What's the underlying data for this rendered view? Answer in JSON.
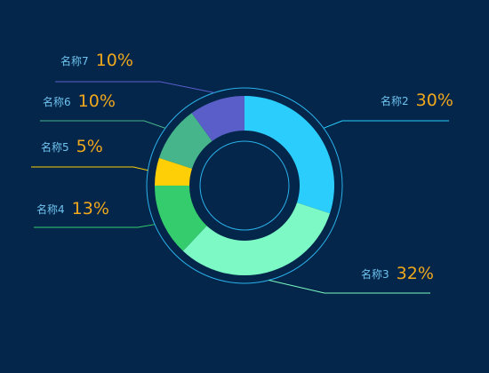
{
  "chart_data": {
    "type": "pie",
    "variant": "donut",
    "title": "",
    "legend": "none",
    "slices": [
      {
        "name": "名称2",
        "value": 30,
        "label": "30%",
        "color": "#2bcdfd"
      },
      {
        "name": "名称3",
        "value": 32,
        "label": "32%",
        "color": "#7cf9c4"
      },
      {
        "name": "名称4",
        "value": 13,
        "label": "13%",
        "color": "#35cc6d"
      },
      {
        "name": "名称5",
        "value": 5,
        "label": "5%",
        "color": "#fece06"
      },
      {
        "name": "名称6",
        "value": 10,
        "label": "10%",
        "color": "#47b58b"
      },
      {
        "name": "名称7",
        "value": 10,
        "label": "10%",
        "color": "#5a5ec9"
      }
    ]
  },
  "colors": {
    "background": "#03264a",
    "ring_outline": "#2bb1ea",
    "label_name": "#6fc3f0",
    "label_percent": "#f0a81c",
    "leader_line": "#4a8fc4"
  }
}
